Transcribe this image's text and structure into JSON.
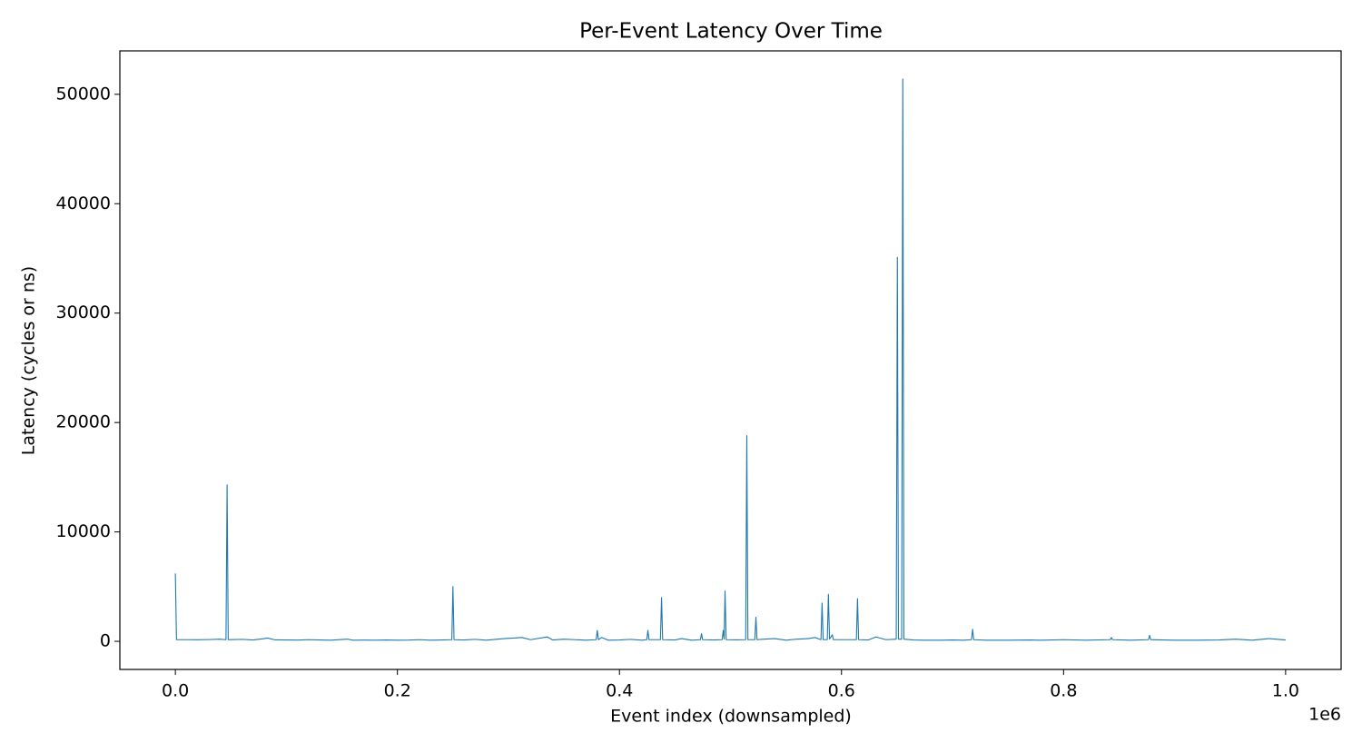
{
  "chart_data": {
    "type": "line",
    "title": "Per-Event Latency Over Time",
    "x_label": "Event index (downsampled)",
    "y_label": "Latency (cycles or ns)",
    "x_offset_label": "1e6",
    "x": [
      0,
      1000,
      10000,
      20000,
      30000,
      40000,
      45600,
      46600,
      47600,
      60000,
      70000,
      80000,
      83000,
      90000,
      100000,
      110000,
      120000,
      130000,
      140000,
      155000,
      160000,
      170000,
      180000,
      190000,
      200000,
      210000,
      220000,
      230000,
      240000,
      249000,
      250000,
      251000,
      260000,
      270000,
      280000,
      296000,
      305000,
      312000,
      320000,
      335000,
      340000,
      350000,
      360000,
      370000,
      379000,
      380000,
      381000,
      384000,
      390000,
      400000,
      410000,
      420000,
      424600,
      425600,
      426600,
      436900,
      437900,
      438900,
      450000,
      456000,
      465000,
      472900,
      473900,
      474900,
      485000,
      492500,
      493500,
      494300,
      495100,
      496100,
      505000,
      513700,
      514700,
      515700,
      521900,
      522900,
      523900,
      530000,
      540000,
      550000,
      560000,
      570000,
      576000,
      581500,
      582500,
      583500,
      587200,
      588200,
      589200,
      591700,
      592700,
      600000,
      613400,
      614400,
      615400,
      624000,
      631000,
      640000,
      649300,
      650300,
      651300,
      654200,
      655200,
      656200,
      665000,
      675000,
      690000,
      700000,
      710000,
      717100,
      718100,
      719100,
      730000,
      750000,
      770000,
      780000,
      800000,
      820000,
      842100,
      843100,
      844100,
      860000,
      876500,
      877500,
      878500,
      900000,
      920000,
      940000,
      955000,
      970000,
      985000,
      1000000
    ],
    "series": [
      {
        "name": "Latency",
        "color": "#1f77b4",
        "values": [
          6200,
          150,
          150,
          140,
          160,
          200,
          150,
          14300,
          150,
          180,
          120,
          250,
          300,
          130,
          120,
          110,
          150,
          120,
          100,
          200,
          100,
          110,
          100,
          120,
          100,
          110,
          150,
          100,
          120,
          150,
          5000,
          150,
          120,
          180,
          100,
          250,
          300,
          350,
          150,
          400,
          120,
          200,
          150,
          100,
          150,
          1000,
          150,
          350,
          100,
          120,
          180,
          100,
          150,
          1000,
          150,
          150,
          4000,
          150,
          120,
          250,
          100,
          150,
          700,
          150,
          120,
          150,
          1000,
          200,
          4600,
          150,
          130,
          150,
          18800,
          150,
          150,
          2200,
          150,
          200,
          250,
          100,
          200,
          250,
          350,
          150,
          3500,
          150,
          150,
          4300,
          200,
          600,
          150,
          150,
          150,
          3900,
          150,
          120,
          400,
          150,
          200,
          35100,
          200,
          200,
          51400,
          200,
          120,
          100,
          100,
          120,
          100,
          150,
          1100,
          150,
          100,
          100,
          120,
          100,
          150,
          100,
          150,
          350,
          150,
          100,
          150,
          550,
          150,
          100,
          100,
          120,
          200,
          100,
          250,
          120
        ]
      }
    ],
    "xlim": [
      -50000,
      1050000
    ],
    "xticks": [
      {
        "value": 0,
        "label": "0.0"
      },
      {
        "value": 200000,
        "label": "0.2"
      },
      {
        "value": 400000,
        "label": "0.4"
      },
      {
        "value": 600000,
        "label": "0.6"
      },
      {
        "value": 800000,
        "label": "0.8"
      },
      {
        "value": 1000000,
        "label": "1.0"
      }
    ],
    "ylim": [
      -2570,
      53970
    ],
    "yticks": [
      0,
      10000,
      20000,
      30000,
      40000,
      50000
    ],
    "grid": false
  }
}
